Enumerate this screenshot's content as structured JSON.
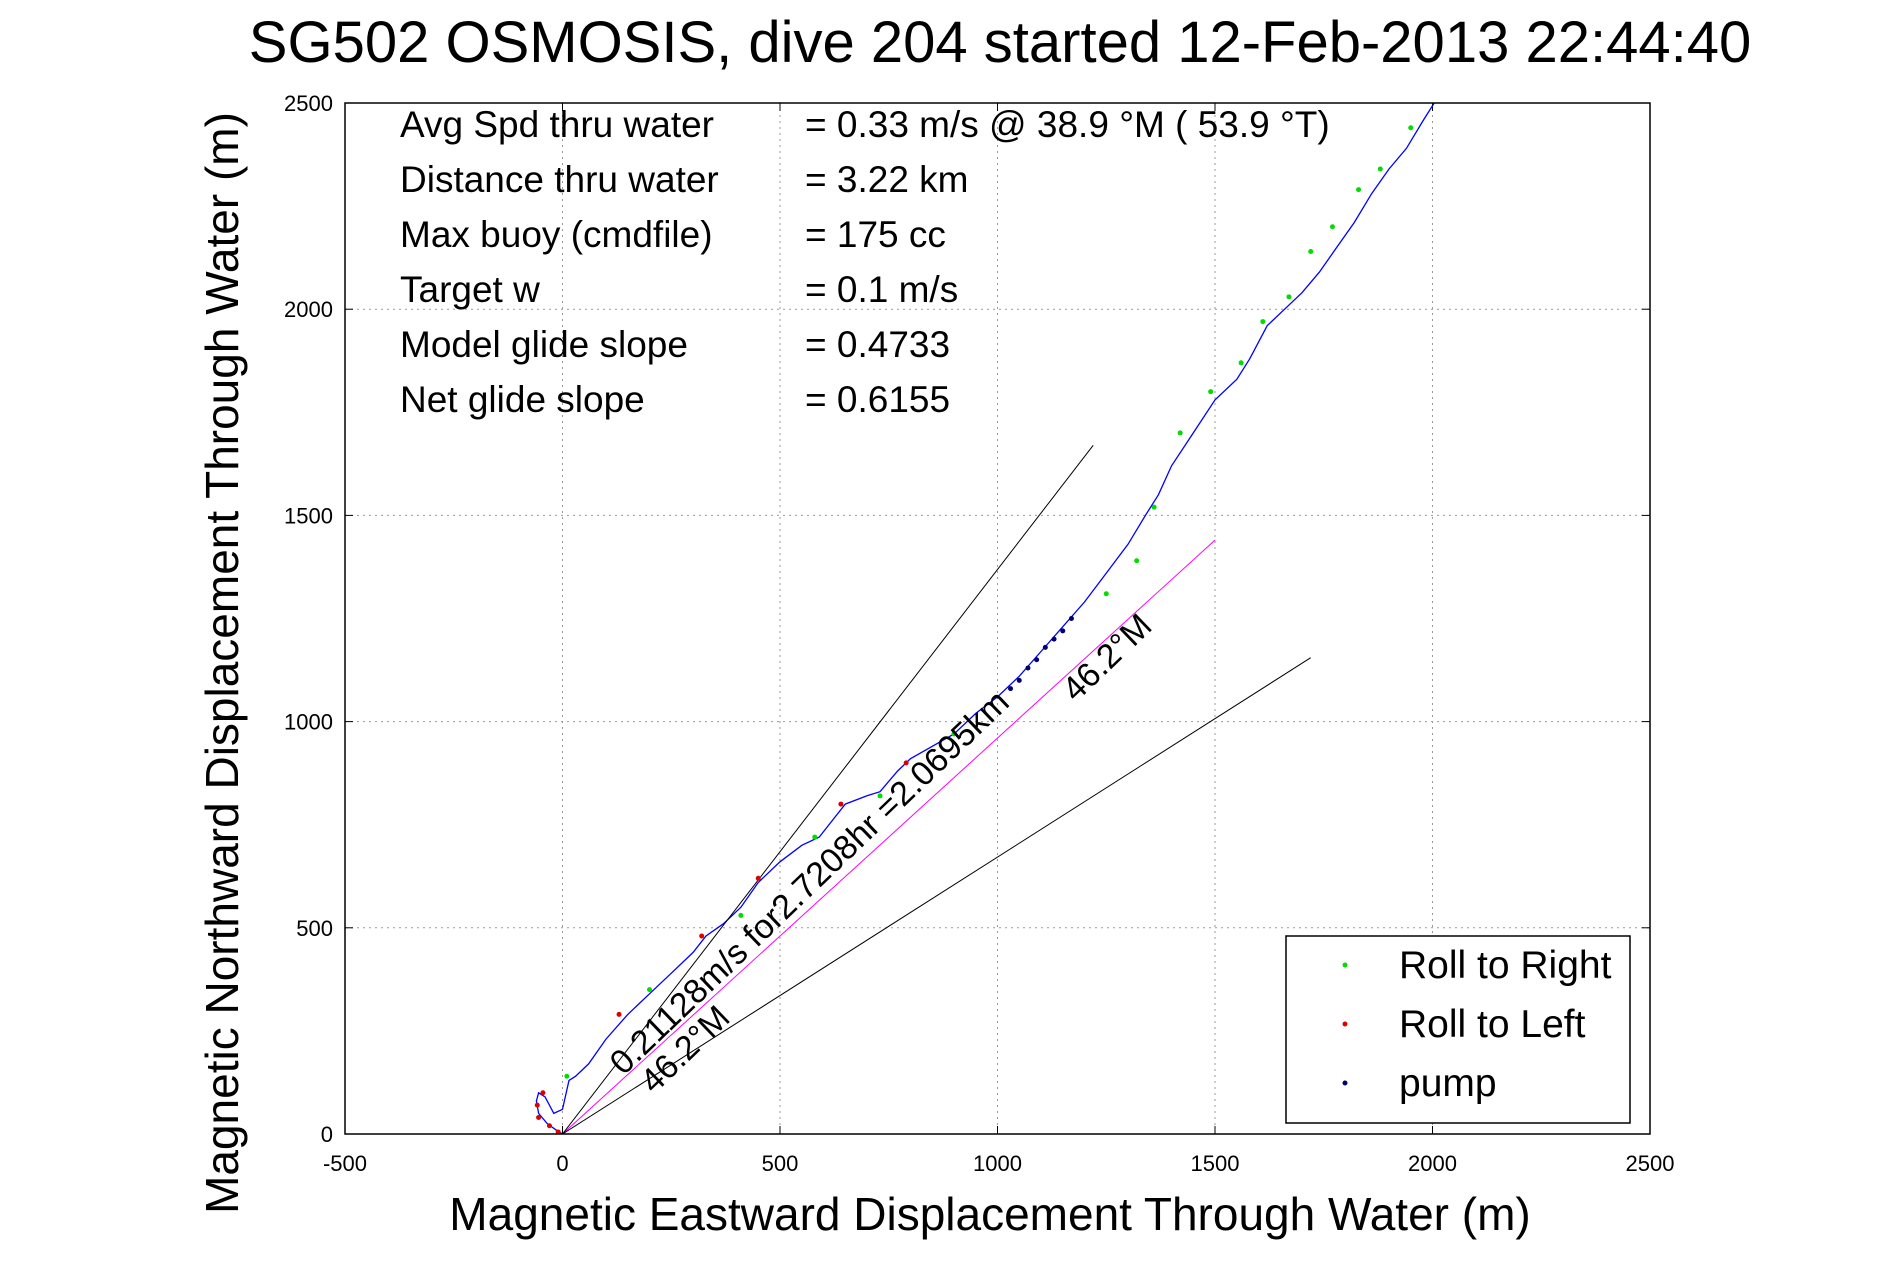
{
  "chart_data": {
    "type": "line",
    "title": "SG502 OSMOSIS, dive 204 started 12-Feb-2013 22:44:40",
    "xlabel": "Magnetic Eastward Displacement Through Water (m)",
    "ylabel": "Magnetic Northward Displacement Through Water (m)",
    "xlim": [
      -500,
      2500
    ],
    "ylim": [
      0,
      2500
    ],
    "xticks": [
      "-500",
      "0",
      "500",
      "1000",
      "1500",
      "2000",
      "2500"
    ],
    "yticks": [
      "0",
      "500",
      "1000",
      "1500",
      "2000",
      "2500"
    ],
    "grid": true,
    "legend_position": "bottom-right",
    "legend": [
      {
        "label": "Roll to Right",
        "color": "#00dd00"
      },
      {
        "label": "Roll to Left",
        "color": "#dd0000"
      },
      {
        "label": "pump",
        "color": "#000066"
      }
    ],
    "info_rows": [
      {
        "label": "Avg Spd thru water",
        "value": "=  0.33 m/s @  38.9 °M ( 53.9 °T)"
      },
      {
        "label": "Distance thru water",
        "value": "=  3.22 km"
      },
      {
        "label": "Max buoy (cmdfile)",
        "value": "= 175 cc"
      },
      {
        "label": "Target w",
        "value": "= 0.1 m/s"
      },
      {
        "label": "Model glide slope",
        "value": "= 0.4733"
      },
      {
        "label": "Net glide slope",
        "value": "= 0.6155"
      }
    ],
    "annotations": [
      {
        "text": "0.21128m/s for2.7208hr =2.0695km",
        "x": 140,
        "y": 140,
        "angle_deg": 43.8
      },
      {
        "text": "46.2°M",
        "x": 210,
        "y": 95,
        "angle_deg": 43.8
      },
      {
        "text": "46.2°M",
        "x": 1180,
        "y": 1045,
        "angle_deg": 43.8
      }
    ],
    "series": [
      {
        "role": "track",
        "color": "#0000ff",
        "x": [
          0,
          -15,
          -35,
          -55,
          -60,
          -55,
          -40,
          -20,
          0,
          15,
          30,
          60,
          100,
          150,
          200,
          250,
          300,
          330,
          370,
          410,
          450,
          500,
          550,
          590,
          620,
          650,
          700,
          730,
          770,
          800,
          850,
          900,
          950,
          1000,
          1050,
          1100,
          1150,
          1200,
          1250,
          1300,
          1340,
          1370,
          1400,
          1450,
          1500,
          1550,
          1580,
          1620,
          1660,
          1700,
          1740,
          1780,
          1820,
          1860,
          1900,
          1940,
          1980,
          2010
        ],
        "y": [
          0,
          10,
          25,
          50,
          80,
          100,
          90,
          50,
          60,
          130,
          140,
          170,
          230,
          290,
          340,
          390,
          440,
          480,
          510,
          550,
          610,
          660,
          700,
          720,
          760,
          800,
          820,
          830,
          880,
          910,
          940,
          970,
          1020,
          1060,
          1110,
          1170,
          1230,
          1290,
          1360,
          1430,
          1500,
          1550,
          1620,
          1700,
          1780,
          1830,
          1880,
          1960,
          2000,
          2040,
          2090,
          2150,
          2210,
          2280,
          2340,
          2390,
          2460,
          2510
        ]
      },
      {
        "role": "current-vector",
        "color": "#ff00ff",
        "x": [
          0,
          1500
        ],
        "y": [
          0,
          1440
        ]
      },
      {
        "role": "guide",
        "color": "#000000",
        "x": [
          0,
          1220
        ],
        "y": [
          0,
          1670
        ]
      },
      {
        "role": "guide",
        "color": "#000000",
        "x": [
          0,
          1720
        ],
        "y": [
          0,
          1155
        ]
      }
    ],
    "markers": {
      "roll_right": {
        "color": "#00dd00",
        "x": [
          10,
          200,
          410,
          580,
          730,
          900,
          1250,
          1320,
          1360,
          1420,
          1490,
          1560,
          1610,
          1670,
          1720,
          1770,
          1830,
          1880,
          1950
        ],
        "y": [
          140,
          350,
          530,
          720,
          820,
          970,
          1310,
          1390,
          1520,
          1700,
          1800,
          1870,
          1970,
          2030,
          2140,
          2200,
          2290,
          2340,
          2440
        ]
      },
      "roll_left": {
        "color": "#dd0000",
        "x": [
          -55,
          -58,
          -45,
          -30,
          -10,
          130,
          320,
          450,
          640,
          790
        ],
        "y": [
          40,
          70,
          100,
          20,
          5,
          290,
          480,
          620,
          800,
          900
        ]
      },
      "pump": {
        "color": "#000066",
        "x": [
          1030,
          1050,
          1070,
          1090,
          1110,
          1130,
          1150,
          1170
        ],
        "y": [
          1080,
          1100,
          1130,
          1150,
          1180,
          1200,
          1220,
          1250
        ]
      }
    }
  }
}
